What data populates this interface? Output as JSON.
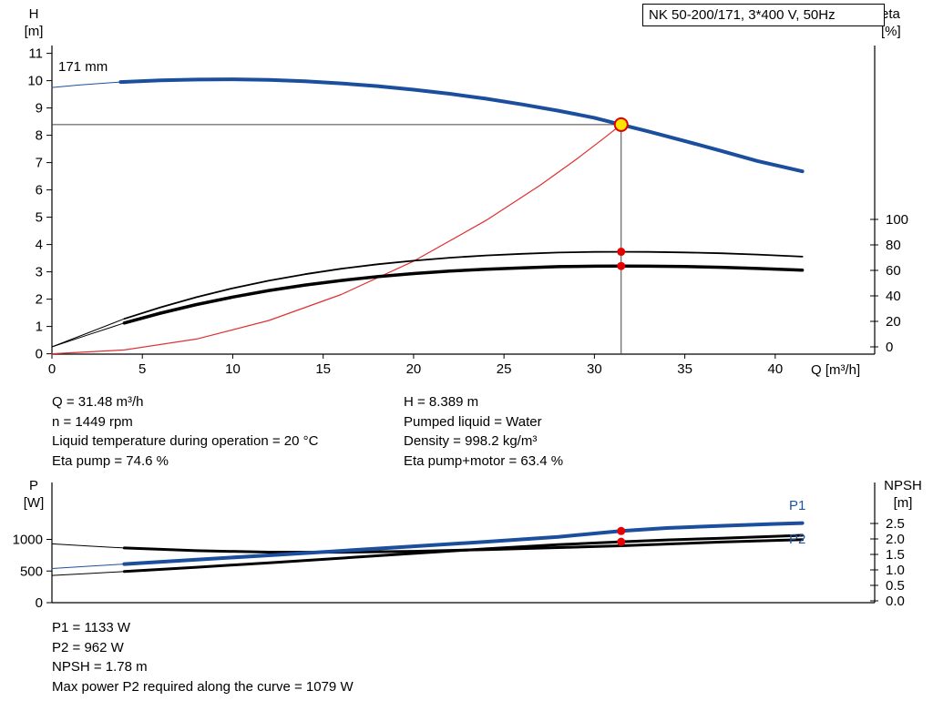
{
  "header": {
    "title_box": "NK 50-200/171, 3*400 V, 50Hz"
  },
  "labels": {
    "h_axis": [
      "H",
      "[m]"
    ],
    "eta_axis": [
      "eta",
      "[%]"
    ],
    "q_axis": "Q [m³/h]",
    "p_axis": [
      "P",
      "[W]"
    ],
    "npsh_axis": [
      "NPSH",
      "[m]"
    ],
    "impeller": "171 mm",
    "p1": "P1",
    "p2": "P2"
  },
  "info_top_left": [
    "Q = 31.48 m³/h",
    "n = 1449 rpm",
    "Liquid temperature during operation = 20 °C",
    "Eta pump = 74.6 %"
  ],
  "info_top_right": [
    "H = 8.389 m",
    "Pumped liquid = Water",
    "Density = 998.2 kg/m³",
    "Eta pump+motor = 63.4 %"
  ],
  "info_bottom": [
    "P1 = 1133 W",
    "P2 = 962 W",
    "NPSH = 1.78 m",
    "Max power P2 required along the curve = 1079 W"
  ],
  "colors": {
    "curve_blue": "#1b4f9e",
    "curve_red": "#e03030",
    "curve_black": "#000000",
    "duty_yellow": "#ffe400",
    "duty_red": "#e60000"
  },
  "chart_data": [
    {
      "id": "qh",
      "type": "line",
      "x_axis": {
        "label": "Q [m³/h]",
        "min": 0,
        "max": 45.5,
        "ticks": [
          0,
          5,
          10,
          15,
          20,
          25,
          30,
          35,
          40
        ]
      },
      "y_left_axis": {
        "label": "H [m]",
        "min": 0,
        "max": 11.3,
        "ticks": [
          0,
          1,
          2,
          3,
          4,
          5,
          6,
          7,
          8,
          9,
          10,
          11
        ]
      },
      "y_right_axis": {
        "label": "eta [%]",
        "min": 0,
        "max": 100,
        "ticks": [
          0,
          20,
          40,
          60,
          80,
          100
        ],
        "tick_decimals": 0
      },
      "series": [
        {
          "name": "head-curve-lead",
          "axis": "left",
          "color": "#1b4f9e",
          "width": 1,
          "points": [
            [
              0,
              9.75
            ],
            [
              1.5,
              9.84
            ],
            [
              3.8,
              9.95
            ]
          ]
        },
        {
          "name": "head-curve-171mm",
          "axis": "left",
          "color": "#1b4f9e",
          "width": 4,
          "points": [
            [
              3.8,
              9.95
            ],
            [
              6,
              10.01
            ],
            [
              8,
              10.04
            ],
            [
              10,
              10.05
            ],
            [
              12,
              10.03
            ],
            [
              14,
              9.98
            ],
            [
              16,
              9.9
            ],
            [
              18,
              9.8
            ],
            [
              20,
              9.67
            ],
            [
              22,
              9.52
            ],
            [
              24,
              9.34
            ],
            [
              26,
              9.13
            ],
            [
              28,
              8.9
            ],
            [
              30,
              8.64
            ],
            [
              31.48,
              8.389
            ],
            [
              33,
              8.14
            ],
            [
              35,
              7.79
            ],
            [
              37,
              7.43
            ],
            [
              39,
              7.06
            ],
            [
              41.5,
              6.68
            ]
          ]
        },
        {
          "name": "system-curve",
          "axis": "left",
          "color": "#e03030",
          "width": 1.2,
          "points": [
            [
              0,
              0
            ],
            [
              4,
              0.14
            ],
            [
              8,
              0.54
            ],
            [
              12,
              1.22
            ],
            [
              16,
              2.17
            ],
            [
              20,
              3.39
            ],
            [
              24,
              4.88
            ],
            [
              27,
              6.17
            ],
            [
              29,
              7.12
            ],
            [
              30.5,
              7.88
            ],
            [
              31.48,
              8.389
            ]
          ]
        },
        {
          "name": "eta-pump-lead",
          "axis": "right",
          "color": "#000000",
          "width": 1,
          "points": [
            [
              0,
              0
            ],
            [
              2,
              11
            ],
            [
              4,
              22
            ]
          ]
        },
        {
          "name": "eta-pump-curve",
          "axis": "right",
          "color": "#000000",
          "width": 1.8,
          "points": [
            [
              4,
              22
            ],
            [
              6,
              31
            ],
            [
              8,
              39
            ],
            [
              10,
              46
            ],
            [
              12,
              52
            ],
            [
              14,
              57
            ],
            [
              16,
              61.3
            ],
            [
              18,
              64.8
            ],
            [
              20,
              67.6
            ],
            [
              22,
              69.9
            ],
            [
              24,
              71.7
            ],
            [
              26,
              73
            ],
            [
              28,
              74
            ],
            [
              30,
              74.5
            ],
            [
              31.48,
              74.6
            ],
            [
              33,
              74.5
            ],
            [
              35,
              74.1
            ],
            [
              37,
              73.4
            ],
            [
              39,
              72.4
            ],
            [
              41.5,
              70.8
            ]
          ]
        },
        {
          "name": "eta-pump-motor-lead",
          "axis": "right",
          "color": "#000000",
          "width": 1,
          "points": [
            [
              0,
              0
            ],
            [
              2,
              9.4
            ],
            [
              4,
              18.7
            ]
          ]
        },
        {
          "name": "eta-pump-motor-curve",
          "axis": "right",
          "color": "#000000",
          "width": 3.5,
          "points": [
            [
              4,
              18.7
            ],
            [
              6,
              26.4
            ],
            [
              8,
              33.2
            ],
            [
              10,
              39.1
            ],
            [
              12,
              44.2
            ],
            [
              14,
              48.5
            ],
            [
              16,
              52.1
            ],
            [
              18,
              55.1
            ],
            [
              20,
              57.5
            ],
            [
              22,
              59.4
            ],
            [
              24,
              60.9
            ],
            [
              26,
              62
            ],
            [
              28,
              62.9
            ],
            [
              30,
              63.3
            ],
            [
              31.48,
              63.4
            ],
            [
              33,
              63.3
            ],
            [
              35,
              63
            ],
            [
              37,
              62.4
            ],
            [
              39,
              61.5
            ],
            [
              41.5,
              60.2
            ]
          ]
        }
      ],
      "duty": {
        "q": 31.48,
        "crosshair": {
          "axis": "left",
          "value": 8.389
        },
        "point": {
          "axis": "left",
          "value": 8.389
        },
        "dots": [
          {
            "axis": "right",
            "value": 74.6
          },
          {
            "axis": "right",
            "value": 63.4
          }
        ]
      }
    },
    {
      "id": "power",
      "type": "line",
      "x_axis": {
        "label": "",
        "min": 0,
        "max": 45.5,
        "ticks": []
      },
      "y_left_axis": {
        "label": "P [W]",
        "min": 0,
        "max": 1900,
        "ticks": [
          0,
          500,
          1000
        ]
      },
      "y_right_axis": {
        "label": "NPSH [m]",
        "min": 0,
        "max": 3,
        "ticks": [
          0,
          0.5,
          1,
          1.5,
          2,
          2.5
        ],
        "tick_decimals": 1
      },
      "series": [
        {
          "name": "npsh-curve-lead",
          "axis": "right",
          "color": "#000000",
          "width": 1,
          "points": [
            [
              0,
              1.84
            ],
            [
              2,
              1.77
            ],
            [
              4,
              1.71
            ]
          ]
        },
        {
          "name": "npsh-curve",
          "axis": "right",
          "color": "#000000",
          "width": 3,
          "points": [
            [
              4,
              1.71
            ],
            [
              8,
              1.62
            ],
            [
              12,
              1.575
            ],
            [
              16,
              1.57
            ],
            [
              20,
              1.6
            ],
            [
              24,
              1.655
            ],
            [
              28,
              1.72
            ],
            [
              31.48,
              1.78
            ],
            [
              34,
              1.835
            ],
            [
              37,
              1.9
            ],
            [
              41.5,
              1.98
            ]
          ]
        },
        {
          "name": "p2-curve-lead",
          "axis": "left",
          "color": "#000000",
          "width": 1,
          "points": [
            [
              0,
              430
            ],
            [
              2,
              460
            ],
            [
              4,
              492
            ]
          ]
        },
        {
          "name": "p2-curve",
          "axis": "left",
          "color": "#000000",
          "width": 3,
          "points": [
            [
              4,
              492
            ],
            [
              8,
              560
            ],
            [
              12,
              630
            ],
            [
              16,
              703
            ],
            [
              20,
              778
            ],
            [
              24,
              850
            ],
            [
              28,
              916
            ],
            [
              31.48,
              962
            ],
            [
              34,
              991
            ],
            [
              37,
              1019
            ],
            [
              40,
              1049
            ],
            [
              41.5,
              1065
            ]
          ]
        },
        {
          "name": "p1-curve-lead",
          "axis": "left",
          "color": "#1b4f9e",
          "width": 1,
          "points": [
            [
              0,
              540
            ],
            [
              2,
              575
            ],
            [
              4,
              610
            ]
          ]
        },
        {
          "name": "p1-curve",
          "axis": "left",
          "color": "#1b4f9e",
          "width": 4,
          "points": [
            [
              4,
              610
            ],
            [
              8,
              680
            ],
            [
              12,
              748
            ],
            [
              16,
              818
            ],
            [
              20,
              890
            ],
            [
              24,
              962
            ],
            [
              28,
              1040
            ],
            [
              31.48,
              1133
            ],
            [
              34,
              1180
            ],
            [
              37,
              1215
            ],
            [
              40,
              1245
            ],
            [
              41.5,
              1258
            ]
          ]
        }
      ],
      "duty": {
        "q": 31.48,
        "dots": [
          {
            "axis": "left",
            "value": 1133
          },
          {
            "axis": "left",
            "value": 962
          }
        ]
      }
    }
  ]
}
